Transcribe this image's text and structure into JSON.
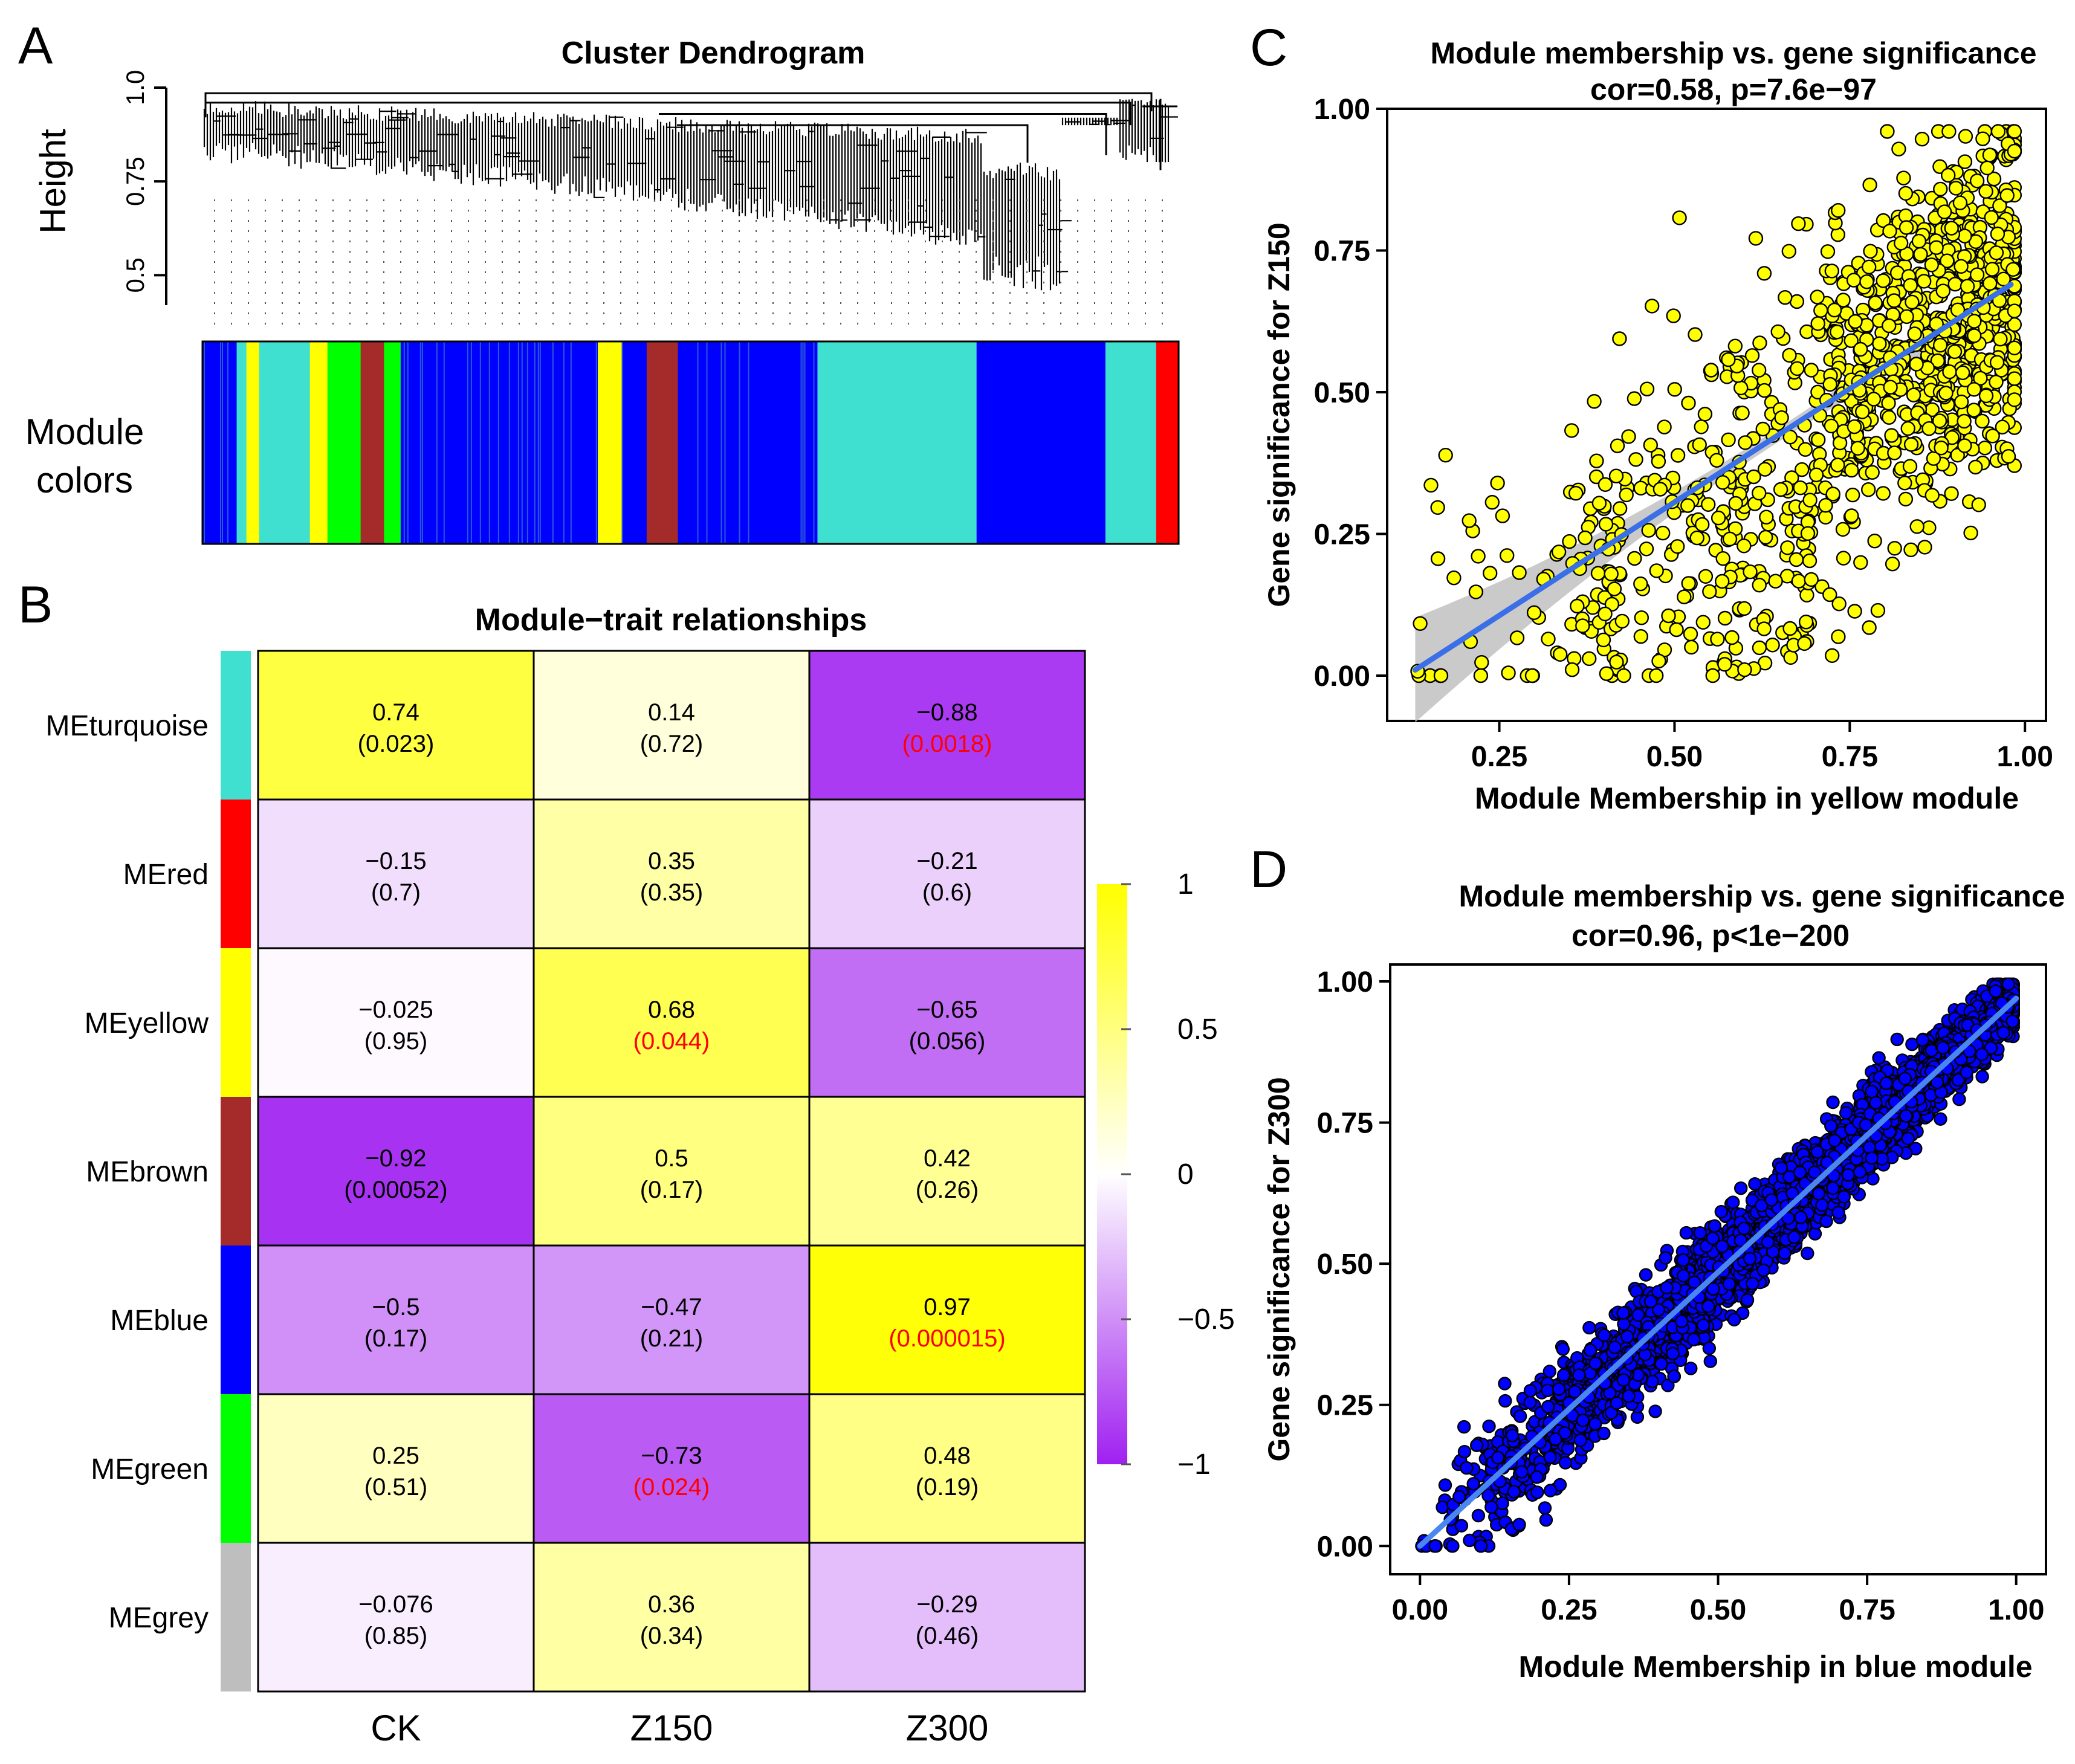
{
  "panels": {
    "a": {
      "letter": "A",
      "title": "Cluster Dendrogram",
      "ylabel": "Height",
      "module_label_line1": "Module",
      "module_label_line2": "colors"
    },
    "b": {
      "letter": "B"
    },
    "c": {
      "letter": "C"
    },
    "d": {
      "letter": "D"
    }
  },
  "colors": {
    "turquoise": "#40e0d0",
    "red": "#ff0000",
    "yellow": "#ffff00",
    "brown": "#a52a2a",
    "blue": "#0000ff",
    "green": "#00ff00",
    "grey": "#bebebe",
    "purple_neg": "#a020f0",
    "significant_text": "#ff0000",
    "fit_line": "#3a6fe8"
  },
  "chart_data": [
    {
      "id": "dendrogram",
      "type": "dendrogram",
      "title": "Cluster Dendrogram",
      "ylabel": "Height",
      "ylim": [
        0.42,
        1.0
      ],
      "yticks": [
        "0.5",
        "0.75",
        "1.0"
      ],
      "ytick_values": [
        0.5,
        0.75,
        1.0
      ],
      "module_colors": [
        {
          "color": "blue",
          "from": 0.0,
          "to": 0.035
        },
        {
          "color": "turquoise",
          "from": 0.035,
          "to": 0.045
        },
        {
          "color": "yellow",
          "from": 0.045,
          "to": 0.058
        },
        {
          "color": "turquoise",
          "from": 0.058,
          "to": 0.11
        },
        {
          "color": "yellow",
          "from": 0.11,
          "to": 0.128
        },
        {
          "color": "green",
          "from": 0.128,
          "to": 0.162
        },
        {
          "color": "brown",
          "from": 0.162,
          "to": 0.186
        },
        {
          "color": "green",
          "from": 0.186,
          "to": 0.203
        },
        {
          "color": "blue",
          "from": 0.203,
          "to": 0.405
        },
        {
          "color": "yellow",
          "from": 0.405,
          "to": 0.43
        },
        {
          "color": "blue",
          "from": 0.43,
          "to": 0.455
        },
        {
          "color": "brown",
          "from": 0.455,
          "to": 0.487
        },
        {
          "color": "blue",
          "from": 0.487,
          "to": 0.63
        },
        {
          "color": "turquoise",
          "from": 0.63,
          "to": 0.793
        },
        {
          "color": "blue",
          "from": 0.793,
          "to": 0.925
        },
        {
          "color": "turquoise",
          "from": 0.925,
          "to": 0.977
        },
        {
          "color": "red",
          "from": 0.977,
          "to": 1.0
        }
      ]
    },
    {
      "id": "module-trait",
      "type": "heatmap",
      "title": "Module−trait relationships",
      "columns": [
        "CK",
        "Z150",
        "Z300"
      ],
      "rows": [
        {
          "label": "MEturquoise",
          "color": "turquoise",
          "cells": [
            {
              "r": "0.74",
              "p": "(0.023)",
              "v": 0.74,
              "sig": false
            },
            {
              "r": "0.14",
              "p": "(0.72)",
              "v": 0.14,
              "sig": false
            },
            {
              "r": "−0.88",
              "p": "(0.0018)",
              "v": -0.88,
              "sig": true
            }
          ]
        },
        {
          "label": "MEred",
          "color": "red",
          "cells": [
            {
              "r": "−0.15",
              "p": "(0.7)",
              "v": -0.15,
              "sig": false
            },
            {
              "r": "0.35",
              "p": "(0.35)",
              "v": 0.35,
              "sig": false
            },
            {
              "r": "−0.21",
              "p": "(0.6)",
              "v": -0.21,
              "sig": false
            }
          ]
        },
        {
          "label": "MEyellow",
          "color": "yellow",
          "cells": [
            {
              "r": "−0.025",
              "p": "(0.95)",
              "v": -0.025,
              "sig": false
            },
            {
              "r": "0.68",
              "p": "(0.044)",
              "v": 0.68,
              "sig": true
            },
            {
              "r": "−0.65",
              "p": "(0.056)",
              "v": -0.65,
              "sig": false
            }
          ]
        },
        {
          "label": "MEbrown",
          "color": "brown",
          "cells": [
            {
              "r": "−0.92",
              "p": "(0.00052)",
              "v": -0.92,
              "sig": false
            },
            {
              "r": "0.5",
              "p": "(0.17)",
              "v": 0.5,
              "sig": false
            },
            {
              "r": "0.42",
              "p": "(0.26)",
              "v": 0.42,
              "sig": false
            }
          ]
        },
        {
          "label": "MEblue",
          "color": "blue",
          "cells": [
            {
              "r": "−0.5",
              "p": "(0.17)",
              "v": -0.5,
              "sig": false
            },
            {
              "r": "−0.47",
              "p": "(0.21)",
              "v": -0.47,
              "sig": false
            },
            {
              "r": "0.97",
              "p": "(0.000015)",
              "v": 0.97,
              "sig": true
            }
          ]
        },
        {
          "label": "MEgreen",
          "color": "green",
          "cells": [
            {
              "r": "0.25",
              "p": "(0.51)",
              "v": 0.25,
              "sig": false
            },
            {
              "r": "−0.73",
              "p": "(0.024)",
              "v": -0.73,
              "sig": true
            },
            {
              "r": "0.48",
              "p": "(0.19)",
              "v": 0.48,
              "sig": false
            }
          ]
        },
        {
          "label": "MEgrey",
          "color": "grey",
          "cells": [
            {
              "r": "−0.076",
              "p": "(0.85)",
              "v": -0.076,
              "sig": false
            },
            {
              "r": "0.36",
              "p": "(0.34)",
              "v": 0.36,
              "sig": false
            },
            {
              "r": "−0.29",
              "p": "(0.46)",
              "v": -0.29,
              "sig": false
            }
          ]
        }
      ],
      "colorbar": {
        "range": [
          -1,
          1
        ],
        "ticks": [
          "1",
          "0.5",
          "0",
          "−0.5",
          "−1"
        ],
        "tick_values": [
          1,
          0.5,
          0,
          -0.5,
          -1
        ]
      }
    },
    {
      "id": "scatter-yellow",
      "type": "scatter",
      "title": "Module membership vs. gene significance",
      "subtitle": "cor=0.58, p=7.6e−97",
      "xlabel": "Module Membership in yellow module",
      "ylabel": "Gene significance for  Z150",
      "xlim": [
        0.09,
        1.03
      ],
      "ylim": [
        -0.08,
        1.0
      ],
      "xticks": [
        "0.25",
        "0.50",
        "0.75",
        "1.00"
      ],
      "xtick_values": [
        0.25,
        0.5,
        0.75,
        1.0
      ],
      "yticks": [
        "0.00",
        "0.25",
        "0.50",
        "0.75",
        "1.00"
      ],
      "ytick_values": [
        0.0,
        0.25,
        0.5,
        0.75,
        1.0
      ],
      "point_color": "yellow",
      "n_points": 1200,
      "correlation": 0.58,
      "fit": {
        "x": [
          0.13,
          0.98
        ],
        "y": [
          0.01,
          0.69
        ]
      }
    },
    {
      "id": "scatter-blue",
      "type": "scatter",
      "title": "Module membership vs. gene significance",
      "subtitle": "cor=0.96, p<1e−200",
      "xlabel": "Module Membership in blue module",
      "ylabel": "Gene significance for  Z300",
      "xlim": [
        -0.05,
        1.05
      ],
      "ylim": [
        -0.05,
        1.03
      ],
      "xticks": [
        "0.00",
        "0.25",
        "0.50",
        "0.75",
        "1.00"
      ],
      "xtick_values": [
        0.0,
        0.25,
        0.5,
        0.75,
        1.0
      ],
      "yticks": [
        "0.00",
        "0.25",
        "0.50",
        "0.75",
        "1.00"
      ],
      "ytick_values": [
        0.0,
        0.25,
        0.5,
        0.75,
        1.0
      ],
      "point_color": "blue",
      "n_points": 4000,
      "correlation": 0.96,
      "fit": {
        "x": [
          0.0,
          1.0
        ],
        "y": [
          0.0,
          0.97
        ]
      }
    }
  ]
}
